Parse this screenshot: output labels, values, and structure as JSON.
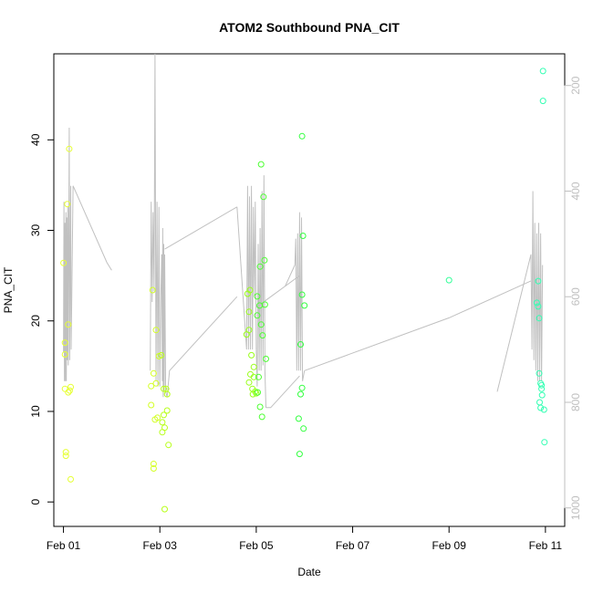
{
  "chart_data": {
    "type": "scatter",
    "title": "ATOM2 Southbound PNA_CIT",
    "xlabel": "Date",
    "ylabel": "PNA_CIT",
    "xlim": [
      -0.2,
      10.4
    ],
    "ylim": [
      -2.7,
      49.5
    ],
    "x_ticks": [
      {
        "value": 0,
        "label": "Feb 01"
      },
      {
        "value": 2,
        "label": "Feb 03"
      },
      {
        "value": 4,
        "label": "Feb 05"
      },
      {
        "value": 6,
        "label": "Feb 07"
      },
      {
        "value": 8,
        "label": "Feb 09"
      },
      {
        "value": 10,
        "label": "Feb 11"
      }
    ],
    "y_ticks": [
      0,
      10,
      20,
      30,
      40
    ],
    "y2_ticks": [
      200,
      400,
      600,
      800,
      1000
    ],
    "y2lim": [
      1035,
      140
    ],
    "grid": false,
    "colors": {
      "axis": "#000000",
      "secondary_axis": "#bfbfbf",
      "altitude_line": "#c0c0c0"
    },
    "points": [
      {
        "x": 0.0,
        "y": 26.4,
        "color": "#e6ff33"
      },
      {
        "x": 0.03,
        "y": 17.6,
        "color": "#e6ff33"
      },
      {
        "x": 0.03,
        "y": 16.3,
        "color": "#e6ff33"
      },
      {
        "x": 0.03,
        "y": 12.5,
        "color": "#e6ff33"
      },
      {
        "x": 0.05,
        "y": 5.5,
        "color": "#e6ff33"
      },
      {
        "x": 0.05,
        "y": 5.1,
        "color": "#e6ff33"
      },
      {
        "x": 0.08,
        "y": 32.9,
        "color": "#e6ff33"
      },
      {
        "x": 0.1,
        "y": 19.6,
        "color": "#e6ff33"
      },
      {
        "x": 0.1,
        "y": 12.1,
        "color": "#e6ff33"
      },
      {
        "x": 0.12,
        "y": 39.0,
        "color": "#e6ff33"
      },
      {
        "x": 0.13,
        "y": 12.3,
        "color": "#e6ff33"
      },
      {
        "x": 0.15,
        "y": 12.7,
        "color": "#e6ff33"
      },
      {
        "x": 0.15,
        "y": 2.5,
        "color": "#e6ff33"
      },
      {
        "x": 1.82,
        "y": 12.8,
        "color": "#d4ff26"
      },
      {
        "x": 1.82,
        "y": 10.7,
        "color": "#d4ff26"
      },
      {
        "x": 1.85,
        "y": 23.4,
        "color": "#d4ff26"
      },
      {
        "x": 1.87,
        "y": 14.2,
        "color": "#d4ff26"
      },
      {
        "x": 1.87,
        "y": 4.2,
        "color": "#d4ff26"
      },
      {
        "x": 1.87,
        "y": 3.7,
        "color": "#d4ff26"
      },
      {
        "x": 1.9,
        "y": 9.1,
        "color": "#d4ff26"
      },
      {
        "x": 1.92,
        "y": 19.0,
        "color": "#d4ff26"
      },
      {
        "x": 1.92,
        "y": 13.1,
        "color": "#d4ff26"
      },
      {
        "x": 1.95,
        "y": 9.3,
        "color": "#d4ff26"
      },
      {
        "x": 1.98,
        "y": 16.1,
        "color": "#d4ff26"
      },
      {
        "x": 2.03,
        "y": 16.2,
        "color": "#b8ff1a"
      },
      {
        "x": 2.05,
        "y": 8.8,
        "color": "#b8ff1a"
      },
      {
        "x": 2.05,
        "y": 7.7,
        "color": "#b8ff1a"
      },
      {
        "x": 2.08,
        "y": 12.5,
        "color": "#b8ff1a"
      },
      {
        "x": 2.08,
        "y": 9.6,
        "color": "#b8ff1a"
      },
      {
        "x": 2.1,
        "y": 8.2,
        "color": "#b8ff1a"
      },
      {
        "x": 2.1,
        "y": -0.8,
        "color": "#b8ff1a"
      },
      {
        "x": 2.13,
        "y": 12.5,
        "color": "#b8ff1a"
      },
      {
        "x": 2.15,
        "y": 11.9,
        "color": "#b8ff1a"
      },
      {
        "x": 2.15,
        "y": 10.1,
        "color": "#b8ff1a"
      },
      {
        "x": 2.18,
        "y": 6.3,
        "color": "#b8ff1a"
      },
      {
        "x": 3.8,
        "y": 18.5,
        "color": "#99ff1a"
      },
      {
        "x": 3.82,
        "y": 23.0,
        "color": "#99ff1a"
      },
      {
        "x": 3.85,
        "y": 19.0,
        "color": "#99ff1a"
      },
      {
        "x": 3.85,
        "y": 13.2,
        "color": "#99ff1a"
      },
      {
        "x": 3.85,
        "y": 21.0,
        "color": "#99ff1a"
      },
      {
        "x": 3.87,
        "y": 23.4,
        "color": "#99ff1a"
      },
      {
        "x": 3.88,
        "y": 14.1,
        "color": "#99ff1a"
      },
      {
        "x": 3.9,
        "y": 16.2,
        "color": "#99ff1a"
      },
      {
        "x": 3.92,
        "y": 12.5,
        "color": "#99ff1a"
      },
      {
        "x": 3.93,
        "y": 11.9,
        "color": "#99ff1a"
      },
      {
        "x": 3.95,
        "y": 14.9,
        "color": "#99ff1a"
      },
      {
        "x": 3.95,
        "y": 13.8,
        "color": "#99ff1a"
      },
      {
        "x": 3.98,
        "y": 12.2,
        "color": "#99ff1a"
      },
      {
        "x": 4.0,
        "y": 12.0,
        "color": "#99ff1a"
      },
      {
        "x": 4.02,
        "y": 22.7,
        "color": "#4dff33"
      },
      {
        "x": 4.02,
        "y": 20.6,
        "color": "#4dff33"
      },
      {
        "x": 4.03,
        "y": 12.1,
        "color": "#4dff33"
      },
      {
        "x": 4.05,
        "y": 13.8,
        "color": "#4dff33"
      },
      {
        "x": 4.07,
        "y": 21.7,
        "color": "#4dff33"
      },
      {
        "x": 4.08,
        "y": 26.0,
        "color": "#4dff33"
      },
      {
        "x": 4.08,
        "y": 10.5,
        "color": "#4dff33"
      },
      {
        "x": 4.1,
        "y": 37.3,
        "color": "#4dff33"
      },
      {
        "x": 4.1,
        "y": 19.6,
        "color": "#4dff33"
      },
      {
        "x": 4.12,
        "y": 9.4,
        "color": "#4dff33"
      },
      {
        "x": 4.13,
        "y": 18.4,
        "color": "#4dff33"
      },
      {
        "x": 4.15,
        "y": 33.7,
        "color": "#4dff33"
      },
      {
        "x": 4.17,
        "y": 26.7,
        "color": "#4dff33"
      },
      {
        "x": 4.18,
        "y": 21.8,
        "color": "#4dff33"
      },
      {
        "x": 4.2,
        "y": 15.8,
        "color": "#4dff33"
      },
      {
        "x": 4.88,
        "y": 9.2,
        "color": "#33ff40"
      },
      {
        "x": 4.9,
        "y": 5.3,
        "color": "#33ff40"
      },
      {
        "x": 4.92,
        "y": 11.9,
        "color": "#33ff40"
      },
      {
        "x": 4.92,
        "y": 17.4,
        "color": "#33ff40"
      },
      {
        "x": 4.95,
        "y": 40.4,
        "color": "#33ff40"
      },
      {
        "x": 4.95,
        "y": 22.9,
        "color": "#33ff40"
      },
      {
        "x": 4.95,
        "y": 12.6,
        "color": "#33ff40"
      },
      {
        "x": 4.97,
        "y": 29.4,
        "color": "#33ff40"
      },
      {
        "x": 4.98,
        "y": 8.1,
        "color": "#33ff40"
      },
      {
        "x": 5.0,
        "y": 21.7,
        "color": "#33ff40"
      },
      {
        "x": 8.0,
        "y": 24.5,
        "color": "#33ff99"
      },
      {
        "x": 9.82,
        "y": 22.0,
        "color": "#33ffb3"
      },
      {
        "x": 9.85,
        "y": 24.4,
        "color": "#33ffb3"
      },
      {
        "x": 9.85,
        "y": 21.6,
        "color": "#33ffb3"
      },
      {
        "x": 9.87,
        "y": 20.3,
        "color": "#33ffb3"
      },
      {
        "x": 9.87,
        "y": 14.2,
        "color": "#33ffb3"
      },
      {
        "x": 9.88,
        "y": 11.0,
        "color": "#33ffb3"
      },
      {
        "x": 9.9,
        "y": 13.1,
        "color": "#33ffb3"
      },
      {
        "x": 9.9,
        "y": 10.4,
        "color": "#33ffb3"
      },
      {
        "x": 9.92,
        "y": 12.9,
        "color": "#33ffb3"
      },
      {
        "x": 9.92,
        "y": 12.5,
        "color": "#33ffb3"
      },
      {
        "x": 9.93,
        "y": 11.8,
        "color": "#33ffb3"
      },
      {
        "x": 9.95,
        "y": 47.6,
        "color": "#33ffb3"
      },
      {
        "x": 9.95,
        "y": 44.3,
        "color": "#33ffb3"
      },
      {
        "x": 9.97,
        "y": 10.2,
        "color": "#33ffb3"
      },
      {
        "x": 9.98,
        "y": 6.6,
        "color": "#33ffb3"
      }
    ],
    "altitude_track": [
      [
        [
          0.0,
          705
        ],
        [
          0.01,
          420
        ],
        [
          0.02,
          760
        ],
        [
          0.03,
          460
        ],
        [
          0.04,
          760
        ],
        [
          0.05,
          440
        ],
        [
          0.06,
          760
        ],
        [
          0.07,
          450
        ],
        [
          0.08,
          720
        ],
        [
          0.09,
          430
        ],
        [
          0.1,
          730
        ],
        [
          0.12,
          280
        ],
        [
          0.13,
          720
        ],
        [
          0.15,
          390
        ],
        [
          0.16,
          700
        ]
      ],
      [
        [
          0.16,
          700
        ],
        [
          0.2,
          390
        ],
        [
          0.9,
          535
        ],
        [
          1.0,
          550
        ]
      ],
      [
        [
          1.8,
          740
        ],
        [
          1.82,
          420
        ],
        [
          1.84,
          610
        ],
        [
          1.86,
          440
        ],
        [
          1.88,
          590
        ],
        [
          1.9,
          140
        ],
        [
          1.92,
          760
        ],
        [
          1.94,
          420
        ],
        [
          1.96,
          770
        ],
        [
          1.98,
          430
        ],
        [
          2.0,
          770
        ],
        [
          2.02,
          600
        ],
        [
          2.04,
          520
        ]
      ],
      [
        [
          2.04,
          520
        ],
        [
          2.05,
          760
        ],
        [
          2.06,
          470
        ],
        [
          2.07,
          790
        ],
        [
          2.08,
          500
        ],
        [
          2.09,
          780
        ],
        [
          2.1,
          520
        ],
        [
          2.12,
          780
        ],
        [
          2.15,
          790
        ]
      ],
      [
        [
          2.15,
          790
        ],
        [
          2.2,
          740
        ],
        [
          3.6,
          600
        ]
      ],
      [
        [
          2.1,
          510
        ],
        [
          3.6,
          430
        ]
      ],
      [
        [
          3.6,
          430
        ],
        [
          3.8,
          700
        ],
        [
          3.82,
          390
        ],
        [
          3.84,
          700
        ],
        [
          3.86,
          410
        ],
        [
          3.88,
          700
        ],
        [
          3.9,
          390
        ],
        [
          3.92,
          700
        ],
        [
          3.94,
          430
        ],
        [
          3.96,
          600
        ],
        [
          3.98,
          420
        ],
        [
          4.0,
          700
        ]
      ],
      [
        [
          4.0,
          700
        ],
        [
          4.02,
          770
        ],
        [
          4.04,
          500
        ],
        [
          4.06,
          740
        ],
        [
          4.08,
          470
        ],
        [
          4.1,
          740
        ],
        [
          4.12,
          400
        ],
        [
          4.14,
          730
        ],
        [
          4.16,
          370
        ],
        [
          4.18,
          740
        ],
        [
          4.2,
          810
        ]
      ],
      [
        [
          4.2,
          810
        ],
        [
          4.3,
          810
        ],
        [
          4.9,
          750
        ]
      ],
      [
        [
          4.0,
          620
        ],
        [
          4.9,
          560
        ]
      ],
      [
        [
          4.6,
          580
        ],
        [
          4.8,
          540
        ],
        [
          4.82,
          490
        ],
        [
          4.84,
          740
        ],
        [
          4.86,
          480
        ],
        [
          4.88,
          740
        ],
        [
          4.9,
          440
        ],
        [
          4.92,
          740
        ],
        [
          4.94,
          450
        ],
        [
          4.96,
          760
        ],
        [
          5.0,
          740
        ]
      ],
      [
        [
          5.0,
          740
        ],
        [
          8.0,
          640
        ],
        [
          9.7,
          570
        ]
      ],
      [
        [
          9.0,
          780
        ],
        [
          9.7,
          520
        ],
        [
          9.72,
          700
        ],
        [
          9.74,
          400
        ],
        [
          9.76,
          720
        ],
        [
          9.78,
          460
        ],
        [
          9.8,
          740
        ],
        [
          9.82,
          480
        ],
        [
          9.84,
          760
        ],
        [
          9.86,
          460
        ],
        [
          9.88,
          760
        ],
        [
          9.9,
          480
        ],
        [
          9.92,
          760
        ],
        [
          9.94,
          540
        ]
      ]
    ]
  }
}
